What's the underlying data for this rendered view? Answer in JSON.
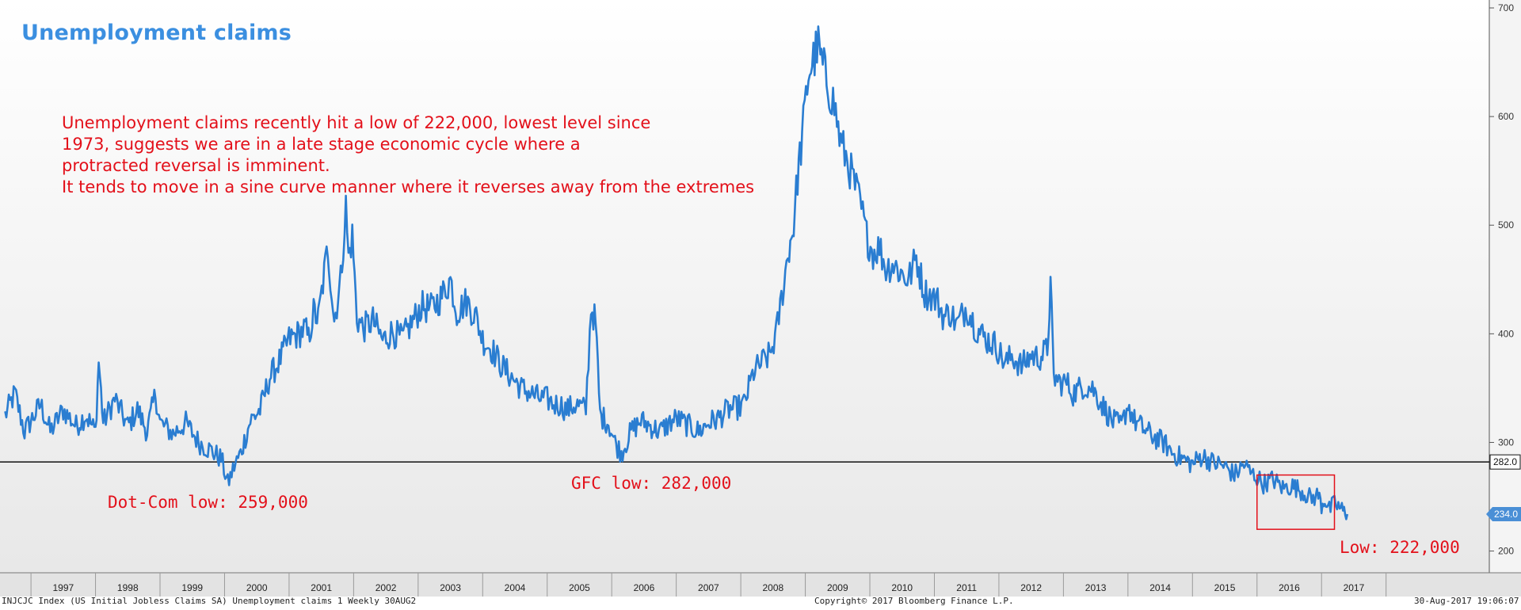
{
  "title": "Unemployment claims",
  "commentary": [
    "Unemployment claims recently hit a low of 222,000, lowest level since",
    "1973, suggests we are in a late stage economic cycle where a",
    "protracted reversal is imminent.",
    "It tends to move in a sine curve manner where it reverses away from the extremes"
  ],
  "annotations": [
    {
      "id": "dotcom",
      "text": "Dot-Com low: 259,000"
    },
    {
      "id": "gfc",
      "text": "GFC low: 282,000"
    },
    {
      "id": "low",
      "text": "Low: 222,000"
    }
  ],
  "footer": {
    "left": "INJCJC Index (US Initial Jobless Claims SA) Unemployment claims 1  Weekly 30AUG2",
    "center": "Copyright© 2017 Bloomberg Finance L.P.",
    "right": "30-Aug-2017 19:06:07"
  },
  "colors": {
    "line": "#2a7dd1",
    "title": "#3b8fe0",
    "annotation": "#e3101a",
    "reference_line": "#111111",
    "last_value_badge": "#4a8fd6"
  },
  "chart_data": {
    "type": "line",
    "frequency": "weekly",
    "x_unit": "year",
    "y_unit": "thousands",
    "ylim": [
      180,
      700
    ],
    "y_ticks": [
      200,
      300,
      400,
      500,
      600,
      700
    ],
    "year_labels": [
      "1997",
      "1998",
      "1999",
      "2000",
      "2001",
      "2002",
      "2003",
      "2004",
      "2005",
      "2006",
      "2007",
      "2008",
      "2009",
      "2010",
      "2011",
      "2012",
      "2013",
      "2014",
      "2015",
      "2016",
      "2017"
    ],
    "reference_line": {
      "value": 282,
      "label": "282.0"
    },
    "last_value": {
      "value": 234,
      "label": "234.0"
    },
    "highlight_box": {
      "x_start": 2016.0,
      "x_end": 2017.2,
      "y_low": 220,
      "y_high": 270
    },
    "series": [
      {
        "points": [
          [
            1996.6,
            325
          ],
          [
            1996.75,
            345
          ],
          [
            1996.9,
            310
          ],
          [
            1997.0,
            320
          ],
          [
            1997.15,
            335
          ],
          [
            1997.3,
            310
          ],
          [
            1997.5,
            330
          ],
          [
            1997.7,
            315
          ],
          [
            1997.85,
            325
          ],
          [
            1998.0,
            310
          ],
          [
            1998.05,
            375
          ],
          [
            1998.12,
            318
          ],
          [
            1998.3,
            340
          ],
          [
            1998.5,
            315
          ],
          [
            1998.65,
            330
          ],
          [
            1998.8,
            310
          ],
          [
            1998.93,
            345
          ],
          [
            1999.0,
            318
          ],
          [
            1999.2,
            308
          ],
          [
            1999.4,
            318
          ],
          [
            1999.6,
            300
          ],
          [
            1999.8,
            292
          ],
          [
            1999.95,
            285
          ],
          [
            2000.05,
            262
          ],
          [
            2000.15,
            278
          ],
          [
            2000.25,
            290
          ],
          [
            2000.4,
            320
          ],
          [
            2000.55,
            330
          ],
          [
            2000.7,
            360
          ],
          [
            2000.85,
            375
          ],
          [
            2001.0,
            395
          ],
          [
            2001.15,
            400
          ],
          [
            2001.25,
            405
          ],
          [
            2001.3,
            395
          ],
          [
            2001.38,
            420
          ],
          [
            2001.45,
            413
          ],
          [
            2001.6,
            480
          ],
          [
            2001.7,
            412
          ],
          [
            2001.8,
            450
          ],
          [
            2001.88,
            517
          ],
          [
            2001.92,
            470
          ],
          [
            2001.98,
            490
          ],
          [
            2002.05,
            415
          ],
          [
            2002.15,
            405
          ],
          [
            2002.3,
            412
          ],
          [
            2002.45,
            394
          ],
          [
            2002.6,
            402
          ],
          [
            2002.75,
            395
          ],
          [
            2002.9,
            410
          ],
          [
            2003.05,
            425
          ],
          [
            2003.2,
            423
          ],
          [
            2003.35,
            433
          ],
          [
            2003.5,
            450
          ],
          [
            2003.6,
            420
          ],
          [
            2003.75,
            430
          ],
          [
            2003.9,
            415
          ],
          [
            2004.0,
            395
          ],
          [
            2004.15,
            385
          ],
          [
            2004.3,
            370
          ],
          [
            2004.45,
            360
          ],
          [
            2004.6,
            350
          ],
          [
            2004.75,
            345
          ],
          [
            2004.9,
            340
          ],
          [
            2005.0,
            340
          ],
          [
            2005.1,
            335
          ],
          [
            2005.2,
            335
          ],
          [
            2005.3,
            330
          ],
          [
            2005.45,
            335
          ],
          [
            2005.6,
            330
          ],
          [
            2005.68,
            425
          ],
          [
            2005.75,
            410
          ],
          [
            2005.82,
            325
          ],
          [
            2005.95,
            318
          ],
          [
            2006.05,
            300
          ],
          [
            2006.15,
            290
          ],
          [
            2006.3,
            310
          ],
          [
            2006.45,
            320
          ],
          [
            2006.6,
            315
          ],
          [
            2006.75,
            310
          ],
          [
            2006.9,
            318
          ],
          [
            2007.0,
            322
          ],
          [
            2007.2,
            315
          ],
          [
            2007.35,
            310
          ],
          [
            2007.5,
            318
          ],
          [
            2007.65,
            322
          ],
          [
            2007.8,
            330
          ],
          [
            2007.95,
            332
          ],
          [
            2008.05,
            335
          ],
          [
            2008.2,
            365
          ],
          [
            2008.35,
            375
          ],
          [
            2008.45,
            380
          ],
          [
            2008.55,
            400
          ],
          [
            2008.65,
            440
          ],
          [
            2008.75,
            480
          ],
          [
            2008.82,
            500
          ],
          [
            2008.88,
            545
          ],
          [
            2008.95,
            580
          ],
          [
            2009.05,
            640
          ],
          [
            2009.2,
            665
          ],
          [
            2009.25,
            650
          ],
          [
            2009.35,
            630
          ],
          [
            2009.45,
            610
          ],
          [
            2009.55,
            575
          ],
          [
            2009.65,
            560
          ],
          [
            2009.75,
            540
          ],
          [
            2009.85,
            520
          ],
          [
            2009.95,
            490
          ],
          [
            2010.05,
            475
          ],
          [
            2010.15,
            480
          ],
          [
            2010.25,
            460
          ],
          [
            2010.35,
            465
          ],
          [
            2010.5,
            455
          ],
          [
            2010.6,
            450
          ],
          [
            2010.72,
            470
          ],
          [
            2010.85,
            438
          ],
          [
            2010.95,
            435
          ],
          [
            2011.05,
            430
          ],
          [
            2011.15,
            415
          ],
          [
            2011.25,
            420
          ],
          [
            2011.35,
            408
          ],
          [
            2011.5,
            425
          ],
          [
            2011.65,
            405
          ],
          [
            2011.8,
            395
          ],
          [
            2011.95,
            390
          ],
          [
            2012.1,
            372
          ],
          [
            2012.2,
            380
          ],
          [
            2012.35,
            370
          ],
          [
            2012.5,
            380
          ],
          [
            2012.62,
            378
          ],
          [
            2012.75,
            385
          ],
          [
            2012.8,
            444
          ],
          [
            2012.85,
            360
          ],
          [
            2012.95,
            355
          ],
          [
            2013.05,
            355
          ],
          [
            2013.15,
            345
          ],
          [
            2013.3,
            352
          ],
          [
            2013.45,
            350
          ],
          [
            2013.6,
            335
          ],
          [
            2013.75,
            320
          ],
          [
            2013.9,
            315
          ],
          [
            2014.0,
            335
          ],
          [
            2014.1,
            320
          ],
          [
            2014.25,
            312
          ],
          [
            2014.4,
            305
          ],
          [
            2014.55,
            300
          ],
          [
            2014.7,
            290
          ],
          [
            2014.85,
            285
          ],
          [
            2015.0,
            280
          ],
          [
            2015.15,
            288
          ],
          [
            2015.3,
            282
          ],
          [
            2015.5,
            278
          ],
          [
            2015.65,
            270
          ],
          [
            2015.8,
            280
          ],
          [
            2015.9,
            272
          ],
          [
            2016.0,
            268
          ],
          [
            2016.1,
            262
          ],
          [
            2016.25,
            266
          ],
          [
            2016.4,
            258
          ],
          [
            2016.55,
            260
          ],
          [
            2016.7,
            255
          ],
          [
            2016.85,
            248
          ],
          [
            2016.95,
            252
          ],
          [
            2017.0,
            242
          ],
          [
            2017.05,
            248
          ],
          [
            2017.12,
            238
          ],
          [
            2017.2,
            244
          ],
          [
            2017.28,
            240
          ],
          [
            2017.35,
            236
          ],
          [
            2017.4,
            234
          ]
        ]
      }
    ]
  }
}
